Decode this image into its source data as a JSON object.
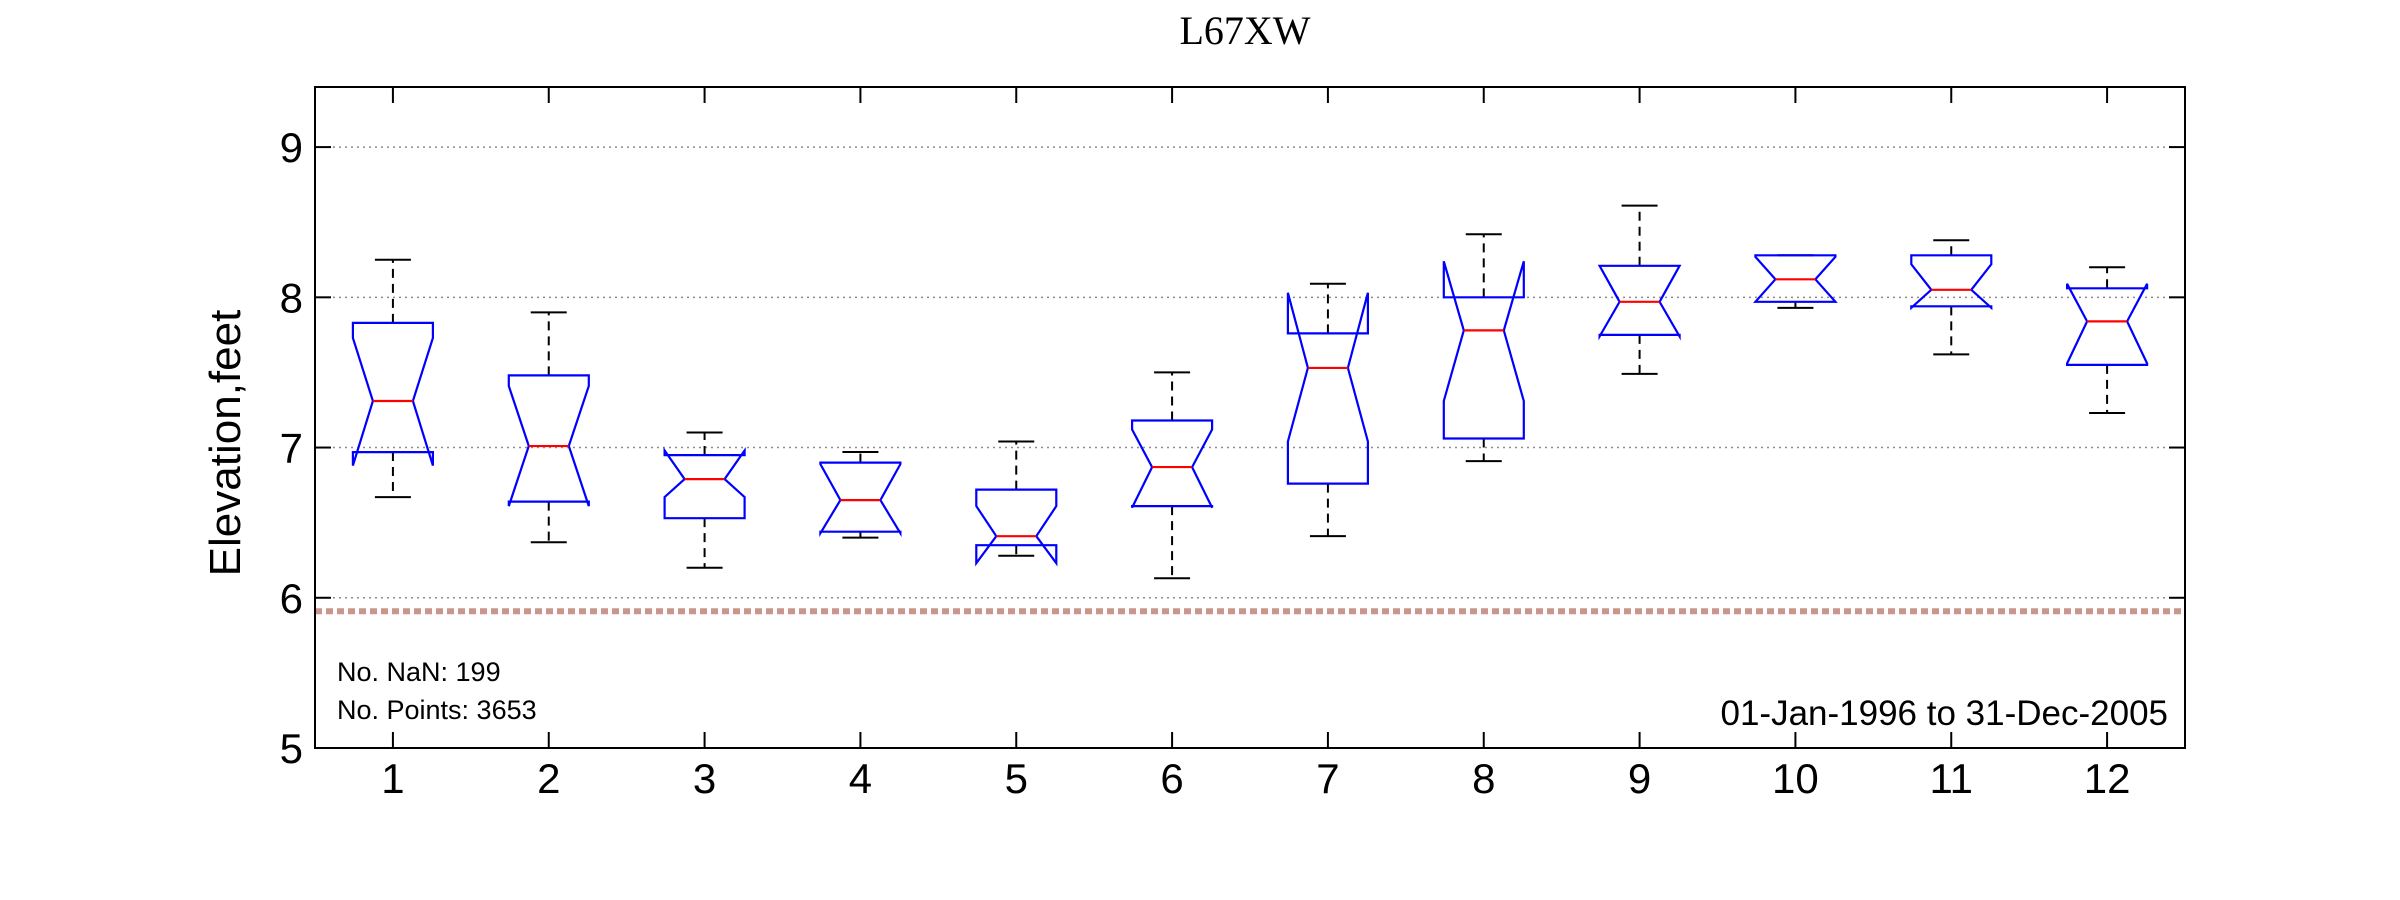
{
  "chart_data": {
    "type": "box",
    "title": "L67XW",
    "ylabel": "Elevation,feet",
    "xlabel": "",
    "ylim": [
      5,
      9.4
    ],
    "yticks": [
      5,
      6,
      7,
      8,
      9
    ],
    "grid": "horizontal dotted",
    "categories": [
      "1",
      "2",
      "3",
      "4",
      "5",
      "6",
      "7",
      "8",
      "9",
      "10",
      "11",
      "12"
    ],
    "boxes": [
      {
        "whisker_low": 6.67,
        "q1": 6.97,
        "median": 7.31,
        "q3": 7.83,
        "whisker_high": 8.25,
        "notch_low": 6.88,
        "notch_high": 7.73
      },
      {
        "whisker_low": 6.37,
        "q1": 6.64,
        "median": 7.01,
        "q3": 7.48,
        "whisker_high": 7.9,
        "notch_low": 6.61,
        "notch_high": 7.41
      },
      {
        "whisker_low": 6.2,
        "q1": 6.53,
        "median": 6.79,
        "q3": 6.95,
        "whisker_high": 7.1,
        "notch_low": 6.67,
        "notch_high": 6.98
      },
      {
        "whisker_low": 6.4,
        "q1": 6.44,
        "median": 6.65,
        "q3": 6.9,
        "whisker_high": 6.97,
        "notch_low": 6.43,
        "notch_high": 6.89
      },
      {
        "whisker_low": 6.28,
        "q1": 6.35,
        "median": 6.41,
        "q3": 6.72,
        "whisker_high": 7.04,
        "notch_low": 6.23,
        "notch_high": 6.61
      },
      {
        "whisker_low": 6.13,
        "q1": 6.61,
        "median": 6.87,
        "q3": 7.18,
        "whisker_high": 7.5,
        "notch_low": 6.6,
        "notch_high": 7.12
      },
      {
        "whisker_low": 6.41,
        "q1": 6.76,
        "median": 7.53,
        "q3": 7.76,
        "whisker_high": 8.09,
        "notch_low": 7.04,
        "notch_high": 8.03
      },
      {
        "whisker_low": 6.91,
        "q1": 7.06,
        "median": 7.78,
        "q3": 8.0,
        "whisker_high": 8.42,
        "notch_low": 7.31,
        "notch_high": 8.24
      },
      {
        "whisker_low": 7.49,
        "q1": 7.75,
        "median": 7.97,
        "q3": 8.21,
        "whisker_high": 8.61,
        "notch_low": 7.74,
        "notch_high": 8.21
      },
      {
        "whisker_low": 7.93,
        "q1": 7.97,
        "median": 8.12,
        "q3": 8.28,
        "whisker_high": 8.28,
        "notch_low": 7.97,
        "notch_high": 8.27
      },
      {
        "whisker_low": 7.62,
        "q1": 7.94,
        "median": 8.05,
        "q3": 8.28,
        "whisker_high": 8.38,
        "notch_low": 7.93,
        "notch_high": 8.22
      },
      {
        "whisker_low": 7.23,
        "q1": 7.55,
        "median": 7.84,
        "q3": 8.06,
        "whisker_high": 8.2,
        "notch_low": 7.56,
        "notch_high": 8.09
      }
    ],
    "reference_line": {
      "value": 5.91,
      "style": "dashed",
      "color": "#c9968e"
    },
    "colors": {
      "box": "#0000ff",
      "median": "#ff0000",
      "whisker": "#000000",
      "grid": "#8c8c8c"
    },
    "annotations": {
      "nan_count": "No. NaN: 199",
      "point_count": "No. Points: 3653",
      "date_range": "01-Jan-1996 to 31-Dec-2005"
    }
  }
}
